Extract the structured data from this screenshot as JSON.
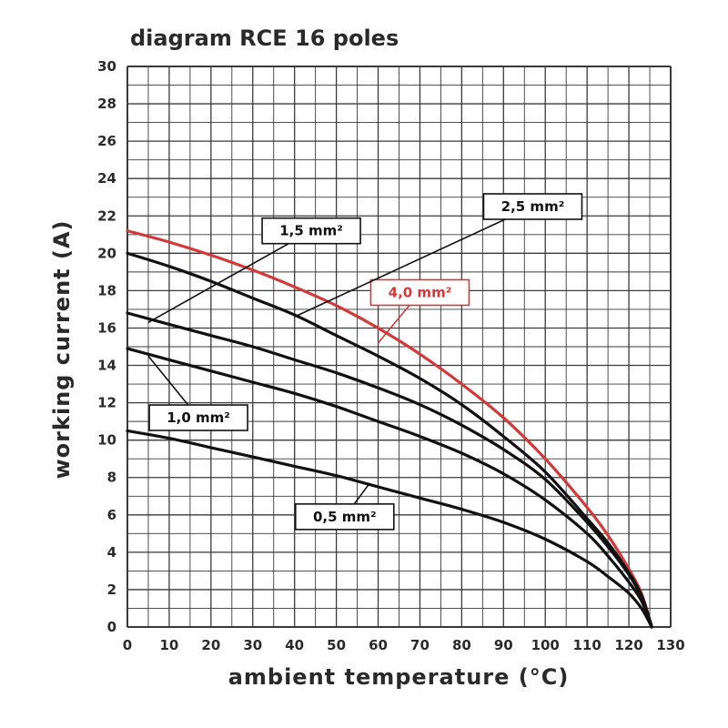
{
  "chart_data": {
    "type": "line",
    "title": "diagram RCE 16 poles",
    "xlabel": "ambient temperature (°C)",
    "ylabel": "working current (A)",
    "xlim": [
      0,
      130
    ],
    "ylim": [
      0,
      30
    ],
    "xticks": [
      0,
      10,
      20,
      30,
      40,
      50,
      60,
      70,
      80,
      90,
      100,
      110,
      120,
      130
    ],
    "xtick_labels": [
      "0",
      "10",
      "20",
      "30",
      "40",
      "50",
      "60",
      "70",
      "80",
      "90",
      "100",
      "110",
      "120",
      "130"
    ],
    "yticks": [
      0,
      2,
      4,
      6,
      8,
      10,
      12,
      14,
      16,
      18,
      20,
      22,
      24,
      26,
      28,
      30
    ],
    "ytick_labels": [
      "0",
      "2",
      "4",
      "6",
      "8",
      "10",
      "12",
      "14",
      "16",
      "18",
      "20",
      "22",
      "24",
      "26",
      "28",
      "30"
    ],
    "grid": true,
    "series": [
      {
        "name": "4,0 mm²",
        "color": "#d23a3a",
        "x": [
          0,
          10,
          20,
          30,
          40,
          50,
          60,
          70,
          80,
          90,
          100,
          110,
          115,
          120,
          123,
          125.5
        ],
        "y": [
          21.2,
          20.6,
          19.9,
          19.1,
          18.2,
          17.2,
          16.0,
          14.6,
          13.0,
          11.2,
          9.0,
          6.4,
          4.9,
          3.1,
          1.8,
          0
        ]
      },
      {
        "name": "2,5 mm²",
        "color": "#111111",
        "x": [
          0,
          10,
          20,
          30,
          40,
          50,
          60,
          70,
          80,
          90,
          100,
          110,
          115,
          120,
          123,
          125.5
        ],
        "y": [
          20.0,
          19.3,
          18.5,
          17.6,
          16.7,
          15.6,
          14.5,
          13.3,
          11.9,
          10.2,
          8.3,
          5.8,
          4.5,
          2.9,
          1.7,
          0
        ]
      },
      {
        "name": "1,5 mm²",
        "color": "#111111",
        "x": [
          0,
          10,
          20,
          30,
          40,
          50,
          60,
          70,
          80,
          90,
          100,
          110,
          115,
          120,
          123,
          125.5
        ],
        "y": [
          16.8,
          16.2,
          15.6,
          15.0,
          14.3,
          13.6,
          12.8,
          11.9,
          10.8,
          9.5,
          7.9,
          5.6,
          4.3,
          2.8,
          1.6,
          0
        ]
      },
      {
        "name": "1,0 mm²",
        "color": "#111111",
        "x": [
          0,
          10,
          20,
          30,
          40,
          50,
          60,
          70,
          80,
          90,
          100,
          110,
          115,
          120,
          123,
          125.5
        ],
        "y": [
          14.9,
          14.3,
          13.7,
          13.1,
          12.5,
          11.8,
          11.0,
          10.2,
          9.3,
          8.2,
          6.8,
          5.0,
          3.8,
          2.4,
          1.4,
          0
        ]
      },
      {
        "name": "0,5 mm²",
        "color": "#111111",
        "x": [
          0,
          10,
          20,
          30,
          40,
          50,
          60,
          70,
          80,
          90,
          100,
          110,
          115,
          120,
          123,
          125.5
        ],
        "y": [
          10.5,
          10.1,
          9.6,
          9.1,
          8.6,
          8.1,
          7.5,
          6.9,
          6.3,
          5.6,
          4.7,
          3.5,
          2.7,
          1.8,
          1.0,
          0
        ]
      }
    ],
    "annotations": [
      {
        "text": "4,0 mm²",
        "color": "#d23a3a",
        "box_center": [
          70,
          17.9
        ],
        "pointer_to": [
          60,
          15.2
        ]
      },
      {
        "text": "2,5 mm²",
        "color": "#111111",
        "box_center": [
          97,
          22.5
        ],
        "pointer_to": [
          40,
          16.6
        ]
      },
      {
        "text": "1,5 mm²",
        "color": "#111111",
        "box_center": [
          44,
          21.2
        ],
        "pointer_to": [
          5,
          16.3
        ]
      },
      {
        "text": "1,0 mm²",
        "color": "#111111",
        "box_center": [
          17,
          11.2
        ],
        "pointer_to": [
          5,
          14.5
        ]
      },
      {
        "text": "0,5 mm²",
        "color": "#111111",
        "box_center": [
          52,
          5.9
        ],
        "pointer_to": [
          58,
          7.7
        ]
      }
    ]
  }
}
